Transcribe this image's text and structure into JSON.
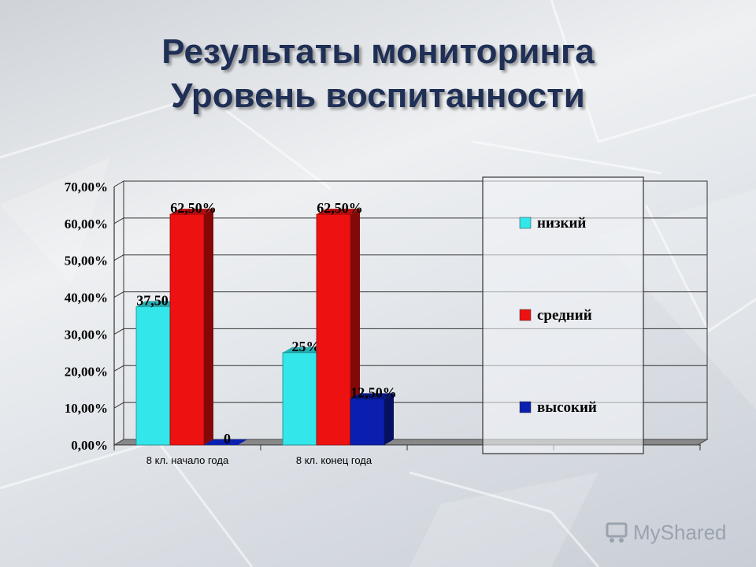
{
  "title_line1": "Результаты  мониторинга",
  "title_line2": "Уровень воспитанности",
  "watermark": "MyShared",
  "colors": {
    "низкий": "#33e6ea",
    "средний": "#ee1111",
    "высокий": "#0a1fb0"
  },
  "chart_data": {
    "type": "bar",
    "categories": [
      "8 кл. начало года",
      "8 кл. конец года"
    ],
    "series": [
      {
        "name": "низкий",
        "values": [
          37.5,
          25
        ],
        "labels": [
          "37,50%",
          "25%"
        ]
      },
      {
        "name": "средний",
        "values": [
          62.5,
          62.5
        ],
        "labels": [
          "62,50%",
          "62,50%"
        ]
      },
      {
        "name": "высокий",
        "values": [
          0,
          12.5
        ],
        "labels": [
          "0",
          "12,50%"
        ]
      }
    ],
    "yticks": [
      "0,00%",
      "10,00%",
      "20,00%",
      "30,00%",
      "40,00%",
      "50,00%",
      "60,00%",
      "70,00%"
    ],
    "ylim": [
      0,
      70
    ],
    "grid": true,
    "legend_position": "right",
    "title": "",
    "xlabel": "",
    "ylabel": ""
  }
}
